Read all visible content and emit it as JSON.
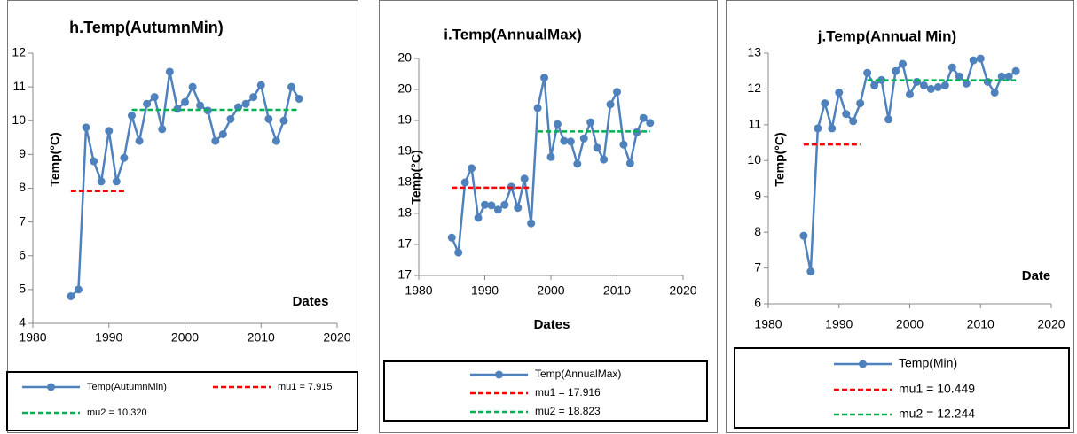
{
  "chart_data": [
    {
      "type": "line",
      "title": "h.Temp(AutumnMin)",
      "xlabel": "Dates",
      "ylabel": "Temp(°C)",
      "xlim": [
        1980,
        2020
      ],
      "xticks": [
        1980,
        1990,
        2000,
        2010,
        2020
      ],
      "ylim": [
        4,
        12
      ],
      "yticks": [
        4,
        5,
        6,
        7,
        8,
        9,
        10,
        11,
        12
      ],
      "x": [
        1985,
        1986,
        1987,
        1988,
        1989,
        1990,
        1991,
        1992,
        1993,
        1994,
        1995,
        1996,
        1997,
        1998,
        1999,
        2000,
        2001,
        2002,
        2003,
        2004,
        2005,
        2006,
        2007,
        2008,
        2009,
        2010,
        2011,
        2012,
        2013,
        2014,
        2015
      ],
      "series": [
        {
          "name": "Temp(AutumnMin)",
          "color": "#4f81bd",
          "values": [
            4.8,
            5.0,
            9.8,
            8.8,
            8.2,
            9.7,
            8.2,
            8.9,
            10.15,
            9.4,
            10.5,
            10.7,
            9.75,
            11.45,
            10.35,
            10.55,
            11.0,
            10.45,
            10.3,
            9.4,
            9.6,
            10.05,
            10.4,
            10.5,
            10.7,
            11.05,
            10.05,
            9.4,
            10.0,
            11.0,
            10.65
          ]
        },
        {
          "name": "mu1 = 7.915",
          "color": "#ff0000",
          "dashed": true,
          "x": [
            1985,
            1992
          ],
          "values": [
            7.915,
            7.915
          ]
        },
        {
          "name": "mu2 = 10.320",
          "color": "#00b050",
          "dashed": true,
          "x": [
            1993,
            2015
          ],
          "values": [
            10.32,
            10.32
          ]
        }
      ]
    },
    {
      "type": "line",
      "title": "i.Temp(AnnualMax)",
      "xlabel": "Dates",
      "ylabel": "Temp(°C)",
      "xlim": [
        1980,
        2020
      ],
      "xticks": [
        1980,
        1990,
        2000,
        2010,
        2020
      ],
      "ylim": [
        16.5,
        20
      ],
      "yticks": [
        {
          "value": 16.5,
          "label": "17"
        },
        17,
        {
          "value": 17.5,
          "label": "18"
        },
        18,
        {
          "value": 18.5,
          "label": "19"
        },
        19,
        {
          "value": 19.5,
          "label": "20"
        },
        20
      ],
      "x": [
        1985,
        1986,
        1987,
        1988,
        1989,
        1990,
        1991,
        1992,
        1993,
        1994,
        1995,
        1996,
        1997,
        1998,
        1999,
        2000,
        2001,
        2002,
        2003,
        2004,
        2005,
        2006,
        2007,
        2008,
        2009,
        2010,
        2011,
        2012,
        2013,
        2014,
        2015
      ],
      "series": [
        {
          "name": "Temp(AnnualMax)",
          "color": "#4f81bd",
          "values": [
            17.11,
            16.87,
            18.0,
            18.23,
            17.43,
            17.64,
            17.63,
            17.56,
            17.64,
            17.93,
            17.59,
            18.06,
            17.34,
            19.2,
            19.69,
            18.41,
            18.94,
            18.67,
            18.66,
            18.3,
            18.71,
            18.97,
            18.56,
            18.37,
            19.26,
            19.46,
            18.61,
            18.31,
            18.81,
            19.04,
            18.96
          ]
        },
        {
          "name": "mu1 = 17.916",
          "color": "#ff0000",
          "dashed": true,
          "x": [
            1985,
            1997
          ],
          "values": [
            17.916,
            17.916
          ]
        },
        {
          "name": "mu2 = 18.823",
          "color": "#00b050",
          "dashed": true,
          "x": [
            1998,
            2015
          ],
          "values": [
            18.823,
            18.823
          ]
        }
      ]
    },
    {
      "type": "line",
      "title": "j.Temp(Annual Min)",
      "xlabel": "Date",
      "ylabel": "Temp(°C)",
      "xlim": [
        1980,
        2020
      ],
      "xticks": [
        1980,
        1990,
        2000,
        2010,
        2020
      ],
      "ylim": [
        6,
        13
      ],
      "yticks": [
        6,
        7,
        8,
        9,
        10,
        11,
        12,
        13
      ],
      "x": [
        1985,
        1986,
        1987,
        1988,
        1989,
        1990,
        1991,
        1992,
        1993,
        1994,
        1995,
        1996,
        1997,
        1998,
        1999,
        2000,
        2001,
        2002,
        2003,
        2004,
        2005,
        2006,
        2007,
        2008,
        2009,
        2010,
        2011,
        2012,
        2013,
        2014,
        2015
      ],
      "series": [
        {
          "name": "Temp(Min)",
          "color": "#4f81bd",
          "values": [
            7.9,
            6.9,
            10.9,
            11.6,
            10.9,
            11.9,
            11.3,
            11.1,
            11.6,
            12.45,
            12.1,
            12.25,
            11.15,
            12.5,
            12.7,
            11.85,
            12.2,
            12.1,
            12.0,
            12.05,
            12.1,
            12.6,
            12.35,
            12.15,
            12.8,
            12.85,
            12.2,
            11.9,
            12.35,
            12.35,
            12.5
          ]
        },
        {
          "name": "mu1 = 10.449",
          "color": "#ff0000",
          "dashed": true,
          "x": [
            1985,
            1993
          ],
          "values": [
            10.449,
            10.449
          ]
        },
        {
          "name": "mu2 = 12.244",
          "color": "#00b050",
          "dashed": true,
          "x": [
            1994,
            2015
          ],
          "values": [
            12.244,
            12.244
          ]
        }
      ]
    }
  ]
}
